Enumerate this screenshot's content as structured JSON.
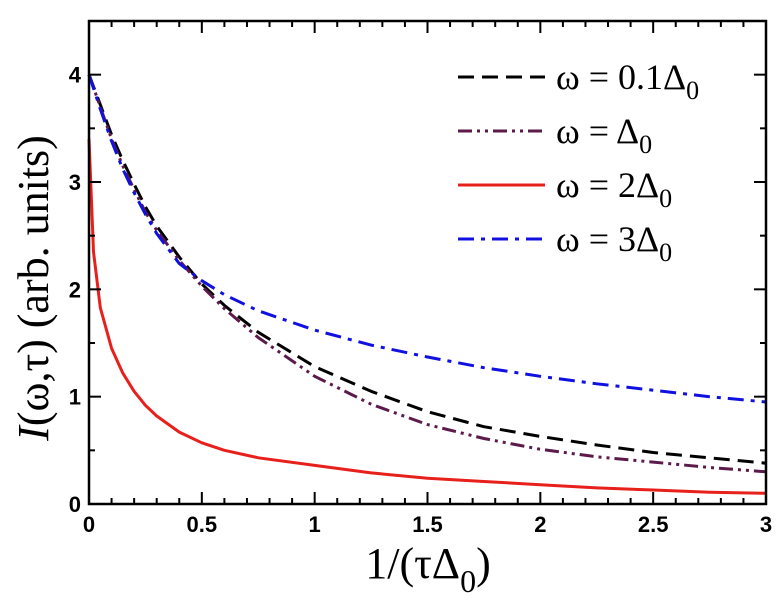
{
  "chart_data": {
    "type": "line",
    "title": "",
    "xlabel": {
      "main": "1/(τΔ",
      "sub": "0",
      "close": ")"
    },
    "ylabel": {
      "italic": "I",
      "rest": "(ω,τ) (arb. units)"
    },
    "xlim": [
      0,
      3
    ],
    "ylim": [
      0,
      4.5
    ],
    "xticks": [
      0,
      0.5,
      1,
      1.5,
      2,
      2.5,
      3
    ],
    "xtick_labels": [
      "0",
      "0.5",
      "1",
      "1.5",
      "2",
      "2.5",
      "3"
    ],
    "yticks": [
      0,
      1,
      2,
      3,
      4
    ],
    "ytick_labels": [
      "0",
      "1",
      "2",
      "3",
      "4"
    ],
    "grid": false,
    "legend_position": "top-right",
    "series": [
      {
        "name": "ω = 0.1Δ0",
        "label_main": "ω = 0.1Δ",
        "label_sub": "0",
        "color": "#000000",
        "dash": "dashed",
        "x": [
          0,
          0.05,
          0.1,
          0.15,
          0.2,
          0.25,
          0.3,
          0.4,
          0.5,
          0.6,
          0.75,
          1.0,
          1.25,
          1.5,
          1.75,
          2.0,
          2.25,
          2.5,
          2.75,
          3.0
        ],
        "y": [
          4.0,
          3.72,
          3.44,
          3.2,
          2.98,
          2.77,
          2.59,
          2.3,
          2.05,
          1.85,
          1.6,
          1.28,
          1.05,
          0.86,
          0.72,
          0.63,
          0.55,
          0.48,
          0.43,
          0.38
        ]
      },
      {
        "name": "ω = Δ0",
        "label_main": "ω = Δ",
        "label_sub": "0",
        "color": "#5c1a4a",
        "dash": "dash-dot-dot",
        "x": [
          0,
          0.05,
          0.1,
          0.15,
          0.2,
          0.25,
          0.3,
          0.4,
          0.5,
          0.6,
          0.75,
          1.0,
          1.25,
          1.5,
          1.75,
          2.0,
          2.25,
          2.5,
          2.75,
          3.0
        ],
        "y": [
          4.0,
          3.7,
          3.4,
          3.15,
          2.93,
          2.72,
          2.55,
          2.27,
          2.03,
          1.82,
          1.55,
          1.19,
          0.93,
          0.74,
          0.61,
          0.51,
          0.44,
          0.39,
          0.34,
          0.3
        ]
      },
      {
        "name": "ω = 2Δ0",
        "label_main": "ω = 2Δ",
        "label_sub": "0",
        "color": "#e8201c",
        "dash": "solid",
        "x": [
          0,
          0.02,
          0.05,
          0.1,
          0.15,
          0.2,
          0.25,
          0.3,
          0.4,
          0.5,
          0.6,
          0.75,
          1.0,
          1.25,
          1.5,
          1.75,
          2.0,
          2.25,
          2.5,
          2.75,
          3.0
        ],
        "y": [
          3.4,
          2.35,
          1.83,
          1.45,
          1.22,
          1.05,
          0.92,
          0.82,
          0.67,
          0.57,
          0.5,
          0.43,
          0.36,
          0.29,
          0.24,
          0.21,
          0.18,
          0.15,
          0.13,
          0.11,
          0.1
        ]
      },
      {
        "name": "ω = 3Δ0",
        "label_main": "ω = 3Δ",
        "label_sub": "0",
        "color": "#1010e0",
        "dash": "dash-dot",
        "x": [
          0,
          0.05,
          0.1,
          0.15,
          0.2,
          0.25,
          0.3,
          0.4,
          0.5,
          0.6,
          0.75,
          1.0,
          1.25,
          1.5,
          1.75,
          2.0,
          2.25,
          2.5,
          2.75,
          3.0
        ],
        "y": [
          4.0,
          3.68,
          3.38,
          3.12,
          2.9,
          2.7,
          2.52,
          2.24,
          2.08,
          1.95,
          1.8,
          1.62,
          1.48,
          1.37,
          1.27,
          1.19,
          1.12,
          1.06,
          1.0,
          0.95
        ]
      }
    ]
  }
}
